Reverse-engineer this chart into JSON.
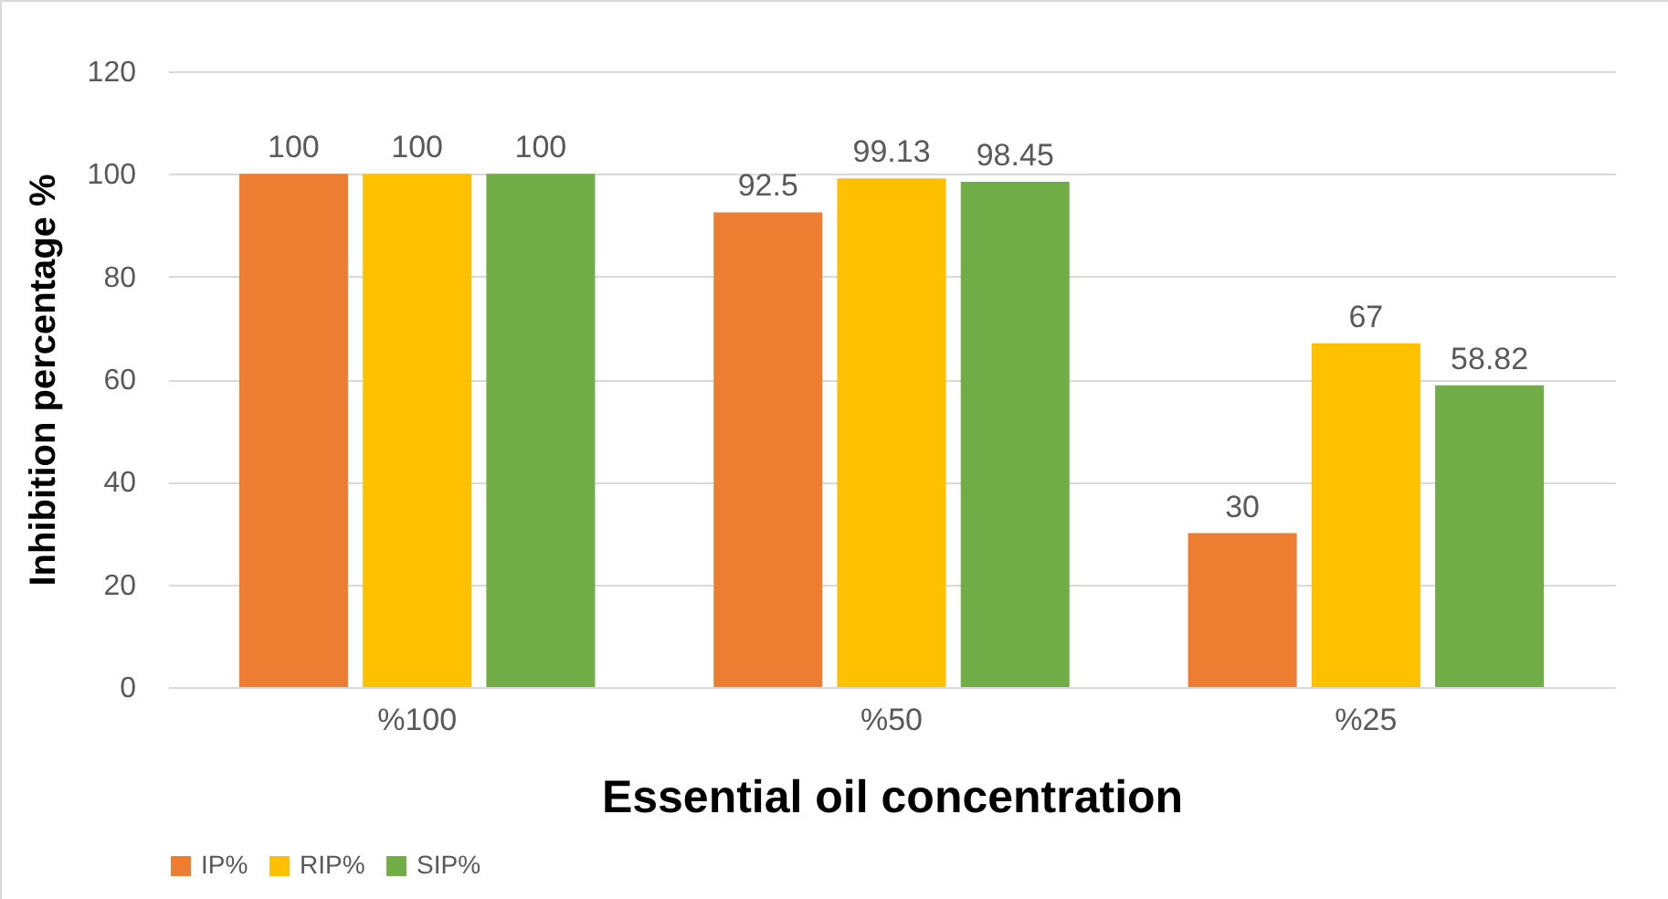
{
  "chart_data": {
    "type": "bar",
    "xlabel": "Essential oil concentration",
    "ylabel": "Inhibition percentage %",
    "categories": [
      "%100",
      "%50",
      "%25"
    ],
    "series": [
      {
        "name": "IP%",
        "color": "#ed7d31",
        "values": [
          100,
          92.5,
          30
        ]
      },
      {
        "name": "RIP%",
        "color": "#ffc000",
        "values": [
          100,
          99.13,
          67
        ]
      },
      {
        "name": "SIP%",
        "color": "#70ad47",
        "values": [
          100,
          98.45,
          58.82
        ]
      }
    ],
    "ylim": [
      0,
      120
    ],
    "yticks": [
      0,
      20,
      40,
      60,
      80,
      100,
      120
    ],
    "grid": "y",
    "legend": "bottom",
    "data_labels": true
  }
}
